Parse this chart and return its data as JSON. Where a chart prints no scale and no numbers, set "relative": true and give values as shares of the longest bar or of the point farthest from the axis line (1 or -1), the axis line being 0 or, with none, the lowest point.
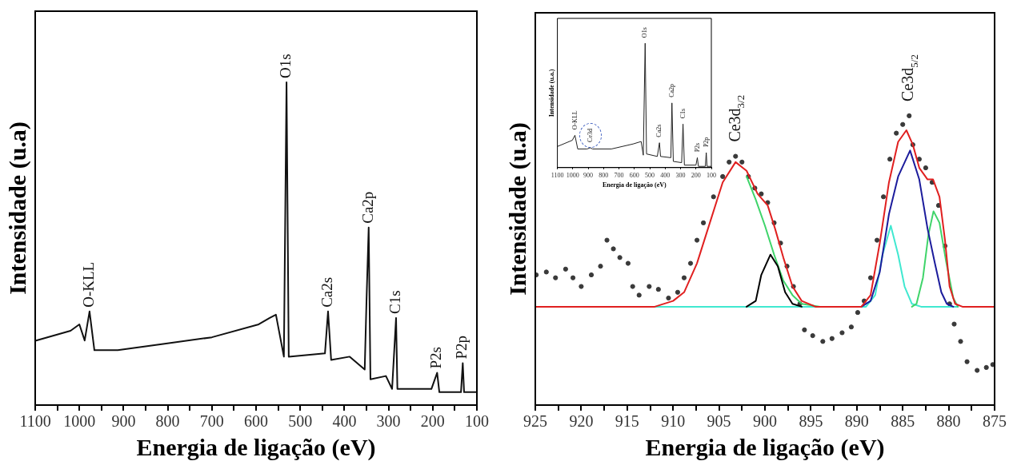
{
  "chart_data": [
    {
      "type": "line",
      "xlabel": "Energia de ligação (eV)",
      "ylabel": "Intensidade (u.a)",
      "relative": true,
      "marker": "none",
      "grid": false,
      "legend": false,
      "xlim": [
        1100,
        100
      ],
      "xticks": [
        1100,
        {
          "value": 1050,
          "label": null
        },
        1000,
        {
          "value": 950,
          "label": null
        },
        900,
        {
          "value": 850,
          "label": null
        },
        800,
        {
          "value": 750,
          "label": null
        },
        700,
        {
          "value": 650,
          "label": null
        },
        600,
        {
          "value": 550,
          "label": null
        },
        500,
        {
          "value": 450,
          "label": null
        },
        400,
        {
          "value": 350,
          "label": null
        },
        300,
        {
          "value": 250,
          "label": null
        },
        200,
        {
          "value": 150,
          "label": null
        },
        100
      ],
      "x": [
        1098,
        1020,
        1000,
        988,
        977,
        966,
        913,
        807,
        700,
        594,
        569,
        555,
        537,
        531,
        526,
        444,
        437,
        430,
        388,
        354,
        350,
        345,
        341,
        306,
        292,
        283,
        280,
        203,
        190,
        185,
        136,
        132,
        129,
        101
      ],
      "series": [
        {
          "color": "#111111",
          "values": [
            0.2,
            0.23,
            0.25,
            0.2,
            0.29,
            0.17,
            0.17,
            0.19,
            0.21,
            0.25,
            0.27,
            0.28,
            0.15,
            1.0,
            0.15,
            0.16,
            0.29,
            0.14,
            0.15,
            0.11,
            0.32,
            0.55,
            0.08,
            0.09,
            0.05,
            0.27,
            0.05,
            0.05,
            0.1,
            0.04,
            0.04,
            0.13,
            0.04,
            0.04
          ]
        }
      ],
      "annotations": [
        {
          "text": "O-KLL",
          "x": 977,
          "y": 0.29
        },
        {
          "text": "O1s",
          "x": 531,
          "y": 1.0
        },
        {
          "text": "Ca2s",
          "x": 437,
          "y": 0.29
        },
        {
          "text": "Ca2p",
          "x": 345,
          "y": 0.55
        },
        {
          "text": "C1s",
          "x": 283,
          "y": 0.27
        },
        {
          "text": "P2s",
          "x": 190,
          "y": 0.1
        },
        {
          "text": "P2p",
          "x": 132,
          "y": 0.13
        }
      ]
    },
    {
      "type": "line",
      "xlabel": "Energia de ligação (eV)",
      "ylabel": "Intensidade (u.a)",
      "relative": true,
      "grid": false,
      "legend": false,
      "xlim": [
        925,
        875
      ],
      "xticks": [
        925,
        {
          "value": 922.5,
          "label": null
        },
        920,
        {
          "value": 917.5,
          "label": null
        },
        915,
        {
          "value": 912.5,
          "label": null
        },
        910,
        {
          "value": 907.5,
          "label": null
        },
        905,
        {
          "value": 902.5,
          "label": null
        },
        900,
        {
          "value": 897.5,
          "label": null
        },
        895,
        {
          "value": 892.5,
          "label": null
        },
        890,
        {
          "value": 887.5,
          "label": null
        },
        885,
        {
          "value": 882.5,
          "label": null
        },
        880,
        {
          "value": 877.5,
          "label": null
        },
        875
      ],
      "series": [
        {
          "type": "scatter",
          "marker": "circle",
          "color": "#3a3a3a",
          "x": [
            924.9,
            923.8,
            922.8,
            921.7,
            920.9,
            920.0,
            918.9,
            917.9,
            917.2,
            916.5,
            915.8,
            914.9,
            914.4,
            913.7,
            912.6,
            911.6,
            910.5,
            909.5,
            908.8,
            908.1,
            907.4,
            906.7,
            905.6,
            904.6,
            903.9,
            903.2,
            902.5,
            901.8,
            901.1,
            900.4,
            899.7,
            899.0,
            898.3,
            897.6,
            896.9,
            896.2,
            895.7,
            894.8,
            893.7,
            892.7,
            891.6,
            890.6,
            889.9,
            889.2,
            888.5,
            887.8,
            887.1,
            886.4,
            885.7,
            885.0,
            884.3,
            883.9,
            883.2,
            882.5,
            881.8,
            881.1,
            880.4,
            879.9,
            879.4,
            878.7,
            878.0,
            876.9,
            875.9,
            875.2
          ],
          "values": [
            0.45,
            0.46,
            0.44,
            0.47,
            0.44,
            0.41,
            0.45,
            0.48,
            0.57,
            0.54,
            0.51,
            0.49,
            0.41,
            0.38,
            0.41,
            0.4,
            0.37,
            0.39,
            0.44,
            0.49,
            0.57,
            0.63,
            0.72,
            0.79,
            0.84,
            0.86,
            0.84,
            0.79,
            0.75,
            0.73,
            0.7,
            0.63,
            0.56,
            0.48,
            0.41,
            0.35,
            0.26,
            0.24,
            0.22,
            0.23,
            0.25,
            0.27,
            0.32,
            0.36,
            0.44,
            0.57,
            0.72,
            0.85,
            0.94,
            0.97,
            1.0,
            0.9,
            0.85,
            0.82,
            0.77,
            0.69,
            0.55,
            0.35,
            0.28,
            0.22,
            0.15,
            0.12,
            0.13,
            0.14
          ]
        },
        {
          "type": "line",
          "color": "#40e8d0",
          "x": [
            912,
            889,
            888,
            887.2,
            886.3,
            885.5,
            884.8,
            884,
            883,
            879
          ],
          "values": [
            0.34,
            0.34,
            0.38,
            0.52,
            0.62,
            0.52,
            0.41,
            0.35,
            0.34,
            0.34
          ]
        },
        {
          "type": "line",
          "color": "#3fd46a",
          "x": [
            902,
            901,
            900,
            899,
            898,
            897,
            896,
            894
          ],
          "values": [
            0.79,
            0.71,
            0.62,
            0.52,
            0.43,
            0.38,
            0.35,
            0.34
          ]
        },
        {
          "type": "line",
          "color": "#3fd46a",
          "x": [
            884,
            883.5,
            882.8,
            882.2,
            881.65,
            881,
            880.3,
            879.5,
            879
          ],
          "values": [
            0.34,
            0.35,
            0.44,
            0.59,
            0.67,
            0.63,
            0.5,
            0.37,
            0.34
          ]
        },
        {
          "type": "line",
          "color": "#000000",
          "x": [
            902,
            901,
            900.4,
            899.4,
            898.6,
            897.8,
            897,
            896
          ],
          "values": [
            0.34,
            0.36,
            0.45,
            0.52,
            0.48,
            0.39,
            0.35,
            0.34
          ]
        },
        {
          "type": "line",
          "color": "#1c1c9c",
          "x": [
            889.5,
            888.5,
            887.5,
            886.5,
            885.5,
            884.2,
            883.2,
            882.3,
            881.5,
            880.8,
            880.2,
            879.5
          ],
          "values": [
            0.34,
            0.36,
            0.46,
            0.66,
            0.79,
            0.88,
            0.78,
            0.61,
            0.49,
            0.39,
            0.35,
            0.34
          ]
        },
        {
          "type": "line",
          "color": "#e02020",
          "x": [
            925,
            912,
            910,
            908.8,
            907.4,
            906,
            904.6,
            903.2,
            902,
            900.8,
            899.7,
            898.9,
            898,
            897,
            896,
            894.5,
            889.5,
            888.5,
            887.5,
            886.5,
            885.5,
            884.6,
            883.9,
            883.2,
            882.3,
            881.7,
            881,
            880.4,
            879.9,
            879.3,
            878.5,
            875
          ],
          "values": [
            0.34,
            0.34,
            0.36,
            0.39,
            0.49,
            0.63,
            0.77,
            0.84,
            0.81,
            0.73,
            0.69,
            0.61,
            0.51,
            0.41,
            0.36,
            0.34,
            0.34,
            0.38,
            0.56,
            0.77,
            0.91,
            0.95,
            0.9,
            0.82,
            0.78,
            0.78,
            0.72,
            0.57,
            0.41,
            0.35,
            0.34,
            0.34
          ]
        }
      ],
      "annotations": [
        {
          "text": "Ce3d$_{3/2}$",
          "x": 903.2,
          "y": 0.86
        },
        {
          "text": "Ce3d$_{5/2}$",
          "x": 884.3,
          "y": 1.0
        }
      ]
    },
    {
      "type": "line",
      "xlabel": "Energia de ligação (eV)",
      "ylabel": "Intensidade (u.a.)",
      "relative": true,
      "marker": "none",
      "grid": false,
      "legend": false,
      "xlim": [
        1100,
        100
      ],
      "xticks": [
        1100,
        1000,
        900,
        800,
        700,
        600,
        500,
        400,
        300,
        200,
        100
      ],
      "x": [
        1100,
        1003,
        986,
        968,
        907,
        886,
        872,
        749,
        609,
        556,
        542,
        530,
        521,
        451,
        437,
        430,
        363,
        356,
        347,
        293,
        284,
        275,
        200,
        191,
        184,
        139,
        133,
        128,
        100
      ],
      "series": [
        {
          "color": "#222222",
          "values": [
            0.17,
            0.22,
            0.26,
            0.15,
            0.15,
            0.16,
            0.15,
            0.15,
            0.19,
            0.21,
            0.1,
            1.0,
            0.11,
            0.09,
            0.2,
            0.09,
            0.08,
            0.52,
            0.05,
            0.04,
            0.35,
            0.02,
            0.02,
            0.08,
            0.01,
            0.01,
            0.12,
            0.01,
            0.01
          ]
        }
      ],
      "annotations": [
        {
          "text": "O-KLL",
          "x": 986,
          "y": 0.26
        },
        {
          "text": "Ce3d",
          "x": 886,
          "y": 0.16
        },
        {
          "text": "O1s",
          "x": 530,
          "y": 1.0
        },
        {
          "text": "Ca2s",
          "x": 437,
          "y": 0.2
        },
        {
          "text": "Ca2p",
          "x": 356,
          "y": 0.52
        },
        {
          "text": "C1s",
          "x": 284,
          "y": 0.35
        },
        {
          "text": "P2s",
          "x": 191,
          "y": 0.08
        },
        {
          "text": "P2p",
          "x": 133,
          "y": 0.12
        }
      ]
    }
  ]
}
